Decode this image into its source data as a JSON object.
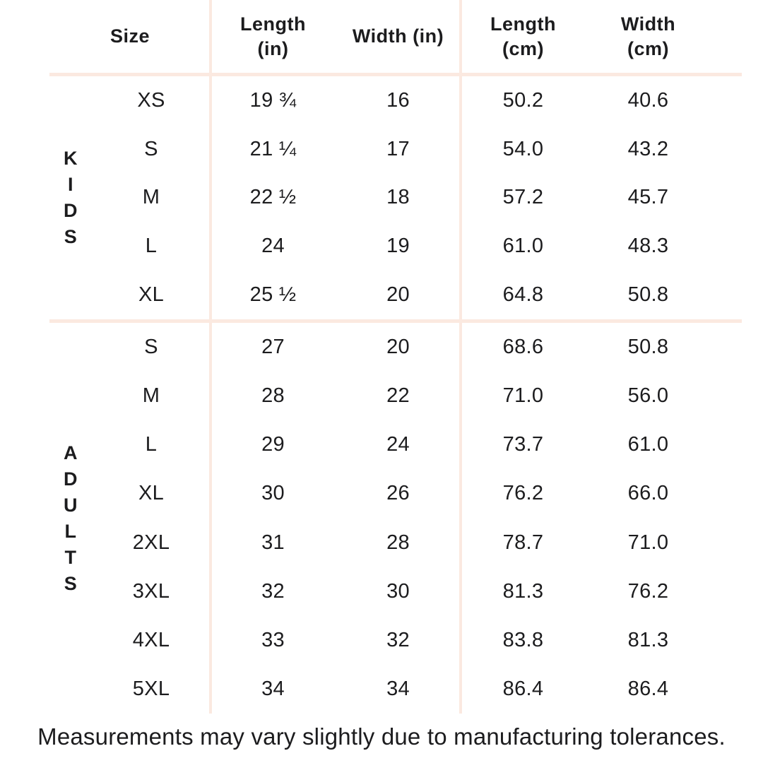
{
  "colors": {
    "divider": "#fbe9e0",
    "text": "#1c1c1e",
    "background": "#ffffff"
  },
  "table": {
    "headers": [
      "Size",
      "Length\n(in)",
      "Width (in)",
      "Length\n(cm)",
      "Width\n(cm)"
    ],
    "sections": [
      {
        "group": "KIDS",
        "letters": [
          "K",
          "I",
          "D",
          "S"
        ],
        "rows": [
          {
            "size": "XS",
            "length_in": "19 ¾",
            "width_in": "16",
            "length_cm": "50.2",
            "width_cm": "40.6"
          },
          {
            "size": "S",
            "length_in": "21 ¼",
            "width_in": "17",
            "length_cm": "54.0",
            "width_cm": "43.2"
          },
          {
            "size": "M",
            "length_in": "22 ½",
            "width_in": "18",
            "length_cm": "57.2",
            "width_cm": "45.7"
          },
          {
            "size": "L",
            "length_in": "24",
            "width_in": "19",
            "length_cm": "61.0",
            "width_cm": "48.3"
          },
          {
            "size": "XL",
            "length_in": "25 ½",
            "width_in": "20",
            "length_cm": "64.8",
            "width_cm": "50.8"
          }
        ]
      },
      {
        "group": "ADULTS",
        "letters": [
          "A",
          "D",
          "U",
          "L",
          "T",
          "S"
        ],
        "rows": [
          {
            "size": "S",
            "length_in": "27",
            "width_in": "20",
            "length_cm": "68.6",
            "width_cm": "50.8"
          },
          {
            "size": "M",
            "length_in": "28",
            "width_in": "22",
            "length_cm": "71.0",
            "width_cm": "56.0"
          },
          {
            "size": "L",
            "length_in": "29",
            "width_in": "24",
            "length_cm": "73.7",
            "width_cm": "61.0"
          },
          {
            "size": "XL",
            "length_in": "30",
            "width_in": "26",
            "length_cm": "76.2",
            "width_cm": "66.0"
          },
          {
            "size": "2XL",
            "length_in": "31",
            "width_in": "28",
            "length_cm": "78.7",
            "width_cm": "71.0"
          },
          {
            "size": "3XL",
            "length_in": "32",
            "width_in": "30",
            "length_cm": "81.3",
            "width_cm": "76.2"
          },
          {
            "size": "4XL",
            "length_in": "33",
            "width_in": "32",
            "length_cm": "83.8",
            "width_cm": "81.3"
          },
          {
            "size": "5XL",
            "length_in": "34",
            "width_in": "34",
            "length_cm": "86.4",
            "width_cm": "86.4"
          }
        ]
      }
    ]
  },
  "footer": {
    "note": "Measurements may vary slightly due to manufacturing tolerances."
  }
}
